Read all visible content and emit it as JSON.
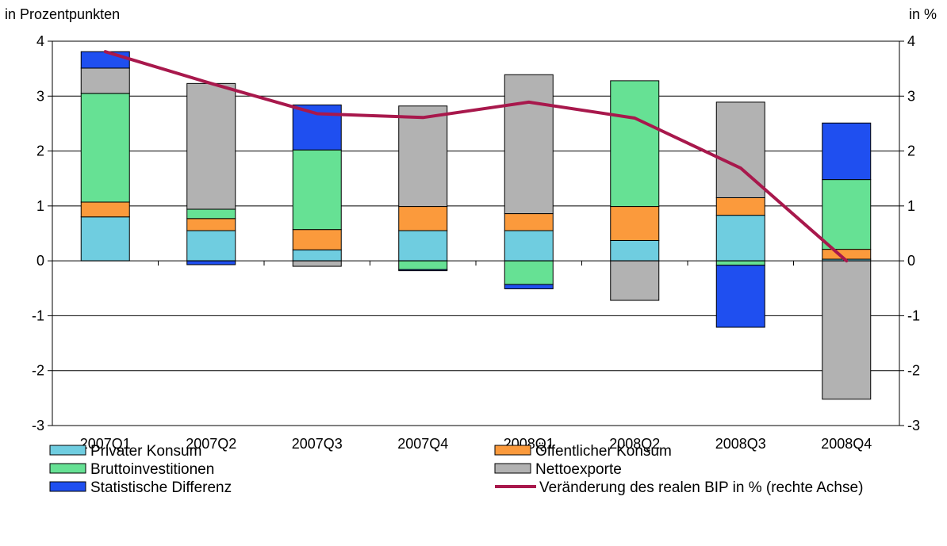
{
  "chart_data": {
    "type": "bar",
    "stacked": true,
    "categories": [
      "2007Q1",
      "2007Q2",
      "2007Q3",
      "2007Q4",
      "2008Q1",
      "2008Q2",
      "2008Q3",
      "2008Q4"
    ],
    "left_axis_label": "in Prozentpunkten",
    "right_axis_label": "in %",
    "ylim": [
      -3,
      4
    ],
    "y2lim": [
      -3,
      4
    ],
    "yticks": [
      -3,
      -2,
      -1,
      0,
      1,
      2,
      3,
      4
    ],
    "grid": true,
    "legend_position": "bottom",
    "series": [
      {
        "name": "Privater Konsum",
        "color": "#6fcde0",
        "values": [
          0.8,
          0.55,
          0.2,
          0.55,
          0.55,
          0.37,
          0.83,
          0.03
        ]
      },
      {
        "name": "Öffentlicher Konsum",
        "color": "#fb9a3c",
        "values": [
          0.27,
          0.22,
          0.37,
          0.44,
          0.31,
          0.62,
          0.32,
          0.18
        ]
      },
      {
        "name": "Bruttoinvestitionen",
        "color": "#66e194",
        "values": [
          1.98,
          0.17,
          1.45,
          -0.16,
          -0.43,
          2.29,
          -0.08,
          1.27
        ]
      },
      {
        "name": "Nettoexporte",
        "color": "#b2b2b2",
        "values": [
          0.46,
          2.29,
          -0.1,
          1.83,
          2.53,
          -0.72,
          1.74,
          -2.52
        ]
      },
      {
        "name": "Statistische Differenz",
        "color": "#1f4ff0",
        "values": [
          0.3,
          -0.07,
          0.82,
          -0.02,
          -0.08,
          0.0,
          -1.13,
          1.03
        ]
      }
    ],
    "line": {
      "name": "Veränderung des realen BIP in % (rechte Achse)",
      "color": "#a8184c",
      "axis": "right",
      "values": [
        3.81,
        3.23,
        2.68,
        2.61,
        2.89,
        2.6,
        1.69,
        0.0
      ]
    },
    "legend": [
      {
        "label": "Privater Konsum",
        "kind": "bar",
        "color": "#6fcde0"
      },
      {
        "label": "Öffentlicher Konsum",
        "kind": "bar",
        "color": "#fb9a3c"
      },
      {
        "label": "Bruttoinvestitionen",
        "kind": "bar",
        "color": "#66e194"
      },
      {
        "label": "Nettoexporte",
        "kind": "bar",
        "color": "#b2b2b2"
      },
      {
        "label": "Statistische Differenz",
        "kind": "bar",
        "color": "#1f4ff0"
      },
      {
        "label": "Veränderung des realen BIP in % (rechte Achse)",
        "kind": "line",
        "color": "#a8184c"
      }
    ]
  }
}
